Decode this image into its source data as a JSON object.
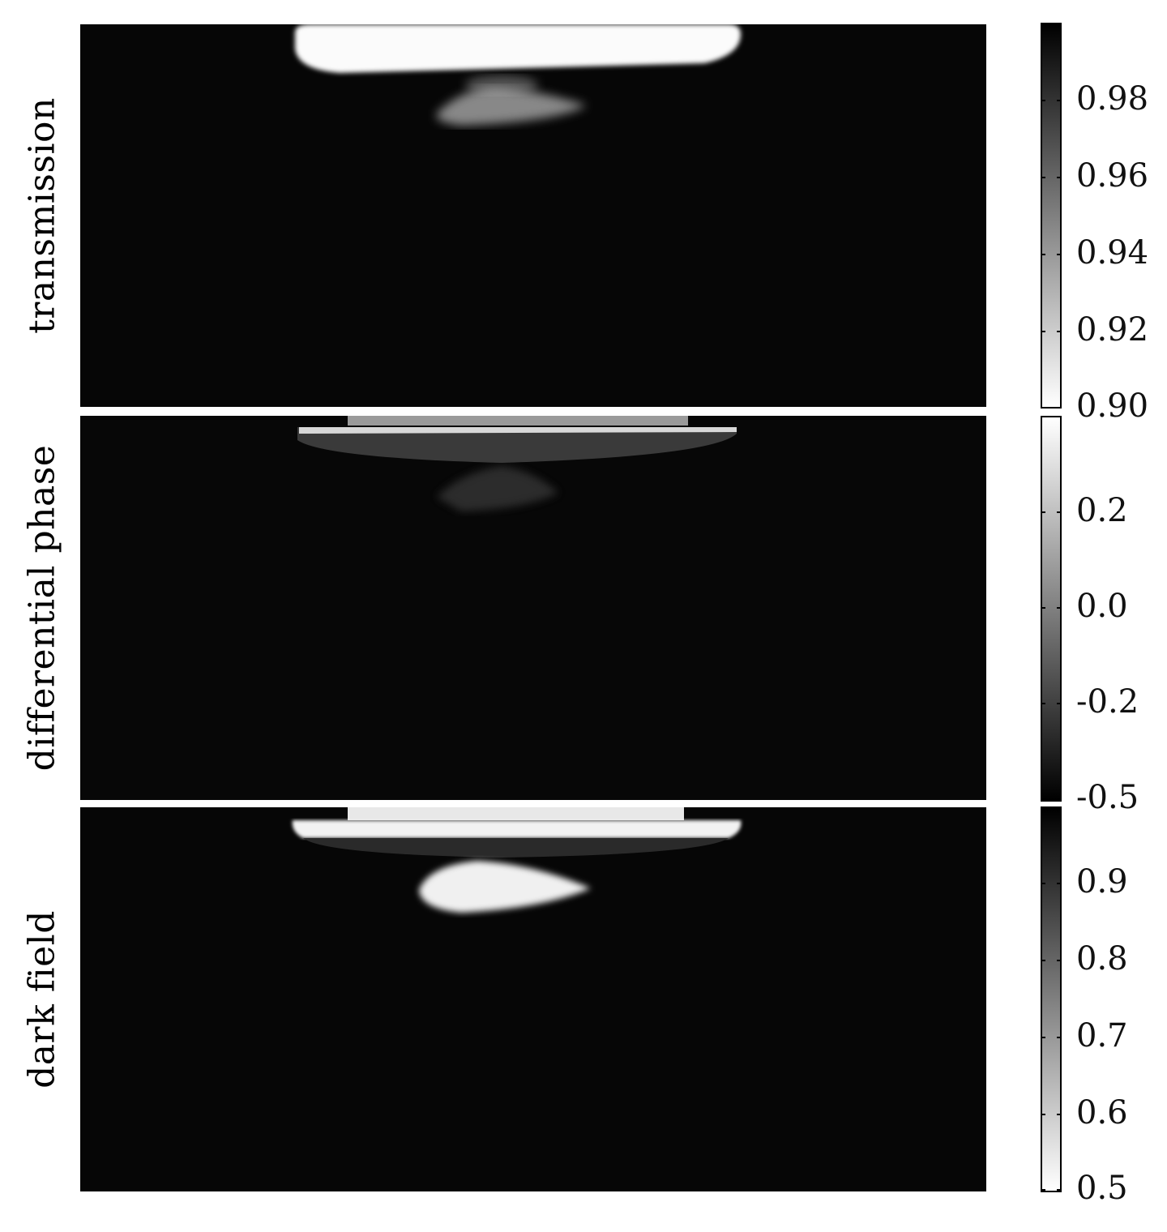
{
  "panels": [
    {
      "label": "transmission",
      "colorbar_gradient": [
        "#ffffff",
        "#000000"
      ],
      "ticks": [
        "0.98",
        "0.96",
        "0.94",
        "0.92",
        "0.90"
      ]
    },
    {
      "label": "differential phase",
      "colorbar_gradient": [
        "#000000",
        "#ffffff"
      ],
      "ticks": [
        "0.2",
        "0.0",
        "-0.2",
        "-0.5"
      ]
    },
    {
      "label": "dark field",
      "colorbar_gradient": [
        "#ffffff",
        "#000000"
      ],
      "ticks": [
        "0.9",
        "0.8",
        "0.7",
        "0.6",
        "0.5"
      ]
    }
  ]
}
